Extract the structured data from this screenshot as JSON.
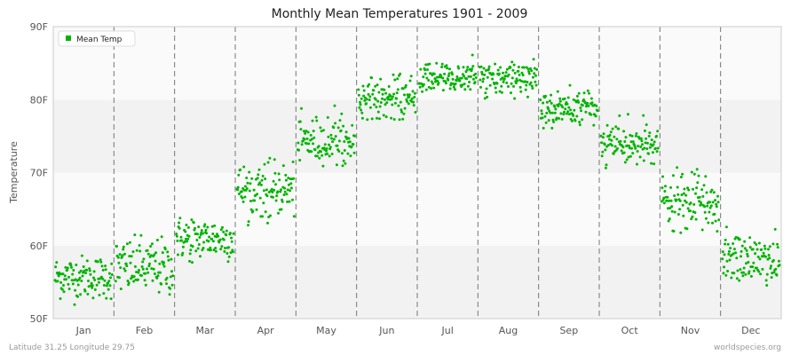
{
  "footer": {
    "location": "Latitude 31.25 Longitude 29.75",
    "source": "worldspecies.org"
  },
  "chart_data": {
    "type": "scatter",
    "title": "Monthly Mean Temperatures 1901 - 2009",
    "xlabel": "",
    "ylabel": "Temperature",
    "categories": [
      "Jan",
      "Feb",
      "Mar",
      "Apr",
      "May",
      "Jun",
      "Jul",
      "Aug",
      "Sep",
      "Oct",
      "Nov",
      "Dec"
    ],
    "ylim": [
      50,
      90
    ],
    "yticks": [
      50,
      60,
      70,
      80,
      90
    ],
    "ytick_labels": [
      "50F",
      "60F",
      "70F",
      "80F",
      "90F"
    ],
    "grid": "alternating horizontal bands, dashed vertical month separators",
    "legend": {
      "position": "top-left",
      "entries": [
        "Mean Temp"
      ]
    },
    "series": [
      {
        "name": "Mean Temp",
        "color": "#00b400",
        "years": "1901-2009",
        "points_per_month": 109,
        "monthly_ranges": [
          {
            "month": "Jan",
            "min": 51.9,
            "max": 59.4,
            "typical": 55.7
          },
          {
            "month": "Feb",
            "min": 51.7,
            "max": 61.8,
            "typical": 57.0
          },
          {
            "month": "Mar",
            "min": 57.7,
            "max": 65.3,
            "typical": 61.0
          },
          {
            "month": "Apr",
            "min": 62.6,
            "max": 72.0,
            "typical": 67.7
          },
          {
            "month": "May",
            "min": 70.9,
            "max": 79.3,
            "typical": 74.3
          },
          {
            "month": "Jun",
            "min": 77.2,
            "max": 84.8,
            "typical": 80.0
          },
          {
            "month": "Jul",
            "min": 81.1,
            "max": 86.5,
            "typical": 83.0
          },
          {
            "month": "Aug",
            "min": 80.0,
            "max": 86.0,
            "typical": 82.7
          },
          {
            "month": "Sep",
            "min": 76.0,
            "max": 82.6,
            "typical": 78.8
          },
          {
            "month": "Oct",
            "min": 70.3,
            "max": 78.1,
            "typical": 73.8
          },
          {
            "month": "Nov",
            "min": 61.0,
            "max": 71.0,
            "typical": 65.8
          },
          {
            "month": "Dec",
            "min": 53.7,
            "max": 62.6,
            "typical": 58.2
          }
        ]
      }
    ]
  }
}
